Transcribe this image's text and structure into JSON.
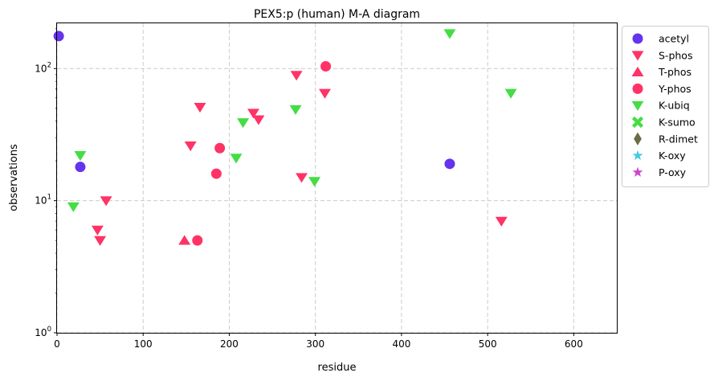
{
  "chart_data": {
    "type": "scatter",
    "title": "PEX5:p (human) M-A diagram",
    "xlabel": "residue",
    "ylabel": "observations",
    "xlim": [
      0,
      650
    ],
    "ylim": [
      1,
      220
    ],
    "yscale": "log",
    "grid": true,
    "legend_position": "outside-right",
    "x_ticks": [
      0,
      100,
      200,
      300,
      400,
      500,
      600
    ],
    "y_ticks": [
      {
        "value": 1,
        "label": "10^0",
        "base": "10",
        "exp": "0"
      },
      {
        "value": 10,
        "label": "10^1",
        "base": "10",
        "exp": "1"
      },
      {
        "value": 100,
        "label": "10^2",
        "base": "10",
        "exp": "2"
      }
    ],
    "series": [
      {
        "name": "acetyl",
        "marker": "circle",
        "color": "#6633ee",
        "points": [
          [
            2,
            176
          ],
          [
            27,
            18
          ],
          [
            456,
            19
          ]
        ]
      },
      {
        "name": "S-phos",
        "marker": "triangle-down",
        "color": "#ff3366",
        "points": [
          [
            166,
            51
          ],
          [
            155,
            26
          ],
          [
            57,
            10
          ],
          [
            47,
            6
          ],
          [
            50,
            5
          ],
          [
            228,
            46
          ],
          [
            234,
            41
          ],
          [
            278,
            89
          ],
          [
            311,
            65
          ],
          [
            284,
            15
          ],
          [
            516,
            7
          ]
        ]
      },
      {
        "name": "T-phos",
        "marker": "triangle-up",
        "color": "#ff3366",
        "points": [
          [
            148,
            5
          ]
        ]
      },
      {
        "name": "Y-phos",
        "marker": "circle",
        "color": "#ff3366",
        "points": [
          [
            312,
            104
          ],
          [
            189,
            25
          ],
          [
            185,
            16
          ],
          [
            163,
            5
          ]
        ]
      },
      {
        "name": "K-ubiq",
        "marker": "triangle-down",
        "color": "#44dd44",
        "points": [
          [
            456,
            184
          ],
          [
            527,
            65
          ],
          [
            277,
            49
          ],
          [
            216,
            39
          ],
          [
            208,
            21
          ],
          [
            27,
            22
          ],
          [
            19,
            9
          ],
          [
            299,
            14
          ]
        ]
      },
      {
        "name": "K-sumo",
        "marker": "x",
        "color": "#44dd44",
        "points": []
      },
      {
        "name": "R-dimet",
        "marker": "diamond",
        "color": "#6b6b45",
        "points": []
      },
      {
        "name": "K-oxy",
        "marker": "star",
        "color": "#44ccdd",
        "points": []
      },
      {
        "name": "P-oxy",
        "marker": "star",
        "color": "#cc44cc",
        "points": []
      }
    ]
  }
}
